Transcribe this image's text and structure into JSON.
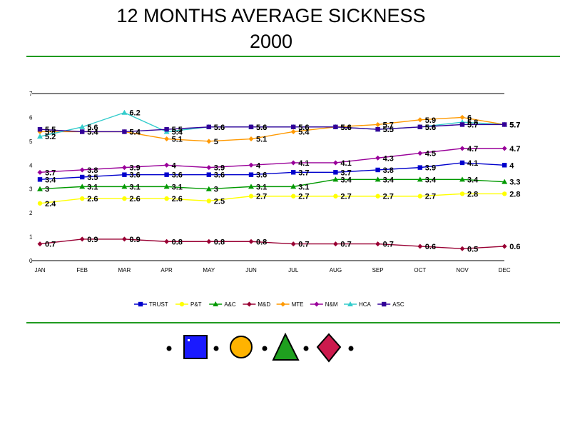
{
  "title_line1": "12  MONTHS AVERAGE SICKNESS",
  "title_line2": "2000",
  "chart_data": {
    "type": "line",
    "categories": [
      "JAN",
      "FEB",
      "MAR",
      "APR",
      "MAY",
      "JUN",
      "JUL",
      "AUG",
      "SEP",
      "OCT",
      "NOV",
      "DEC"
    ],
    "ylim": [
      0,
      7
    ],
    "yticks": [
      "0",
      "1",
      "2",
      "3",
      "4",
      "5",
      "6",
      "7"
    ],
    "xlabel": "",
    "ylabel": "",
    "legend_position": "bottom",
    "series": [
      {
        "name": "TRUST",
        "color": "#0000cc",
        "marker": "square",
        "values": [
          3.4,
          3.5,
          3.6,
          3.6,
          3.6,
          3.6,
          3.7,
          3.7,
          3.8,
          3.9,
          4.1,
          4.0
        ],
        "labels": [
          "3.4",
          "3.5",
          "3.6",
          "3.6",
          "3.6",
          "3.6",
          "3.7",
          "3.7",
          "3.8",
          "3.9",
          "4.1",
          "4"
        ]
      },
      {
        "name": "P&T",
        "color": "#ffff00",
        "marker": "circle",
        "values": [
          2.4,
          2.6,
          2.6,
          2.6,
          2.5,
          2.7,
          2.7,
          2.7,
          2.7,
          2.7,
          2.8,
          2.8
        ],
        "labels": [
          "2.4",
          "2.6",
          "2.6",
          "2.6",
          "2.5",
          "2.7",
          "2.7",
          "2.7",
          "2.7",
          "2.7",
          "2.8",
          "2.8"
        ]
      },
      {
        "name": "A&C",
        "color": "#009900",
        "marker": "triangle",
        "values": [
          3.0,
          3.1,
          3.1,
          3.1,
          3.0,
          3.1,
          3.1,
          3.4,
          3.4,
          3.4,
          3.4,
          3.3
        ],
        "labels": [
          "3",
          "3.1",
          "3.1",
          "3.1",
          "3",
          "3.1",
          "3.1",
          "3.4",
          "3.4",
          "3.4",
          "3.4",
          "3.3"
        ]
      },
      {
        "name": "M&D",
        "color": "#990033",
        "marker": "diamond",
        "values": [
          0.7,
          0.9,
          0.9,
          0.8,
          0.8,
          0.8,
          0.7,
          0.7,
          0.7,
          0.6,
          0.5,
          0.6
        ],
        "labels": [
          "0.7",
          "0.9",
          "0.9",
          "0.8",
          "0.8",
          "0.8",
          "0.7",
          "0.7",
          "0.7",
          "0.6",
          "0.5",
          "0.6"
        ]
      },
      {
        "name": "MTE",
        "color": "#ff9900",
        "marker": "diamond",
        "values": [
          5.4,
          5.4,
          5.4,
          5.1,
          5.0,
          5.1,
          5.4,
          5.6,
          5.7,
          5.9,
          6.0,
          5.7
        ],
        "labels": [
          "5.4",
          "5.4",
          "5.4",
          "5.1",
          "5",
          "5.1",
          "5.4",
          "5.6",
          "5.7",
          "5.9",
          "6",
          "5.7"
        ]
      },
      {
        "name": "N&M",
        "color": "#990099",
        "marker": "diamond",
        "values": [
          3.7,
          3.8,
          3.9,
          4.0,
          3.9,
          4.0,
          4.1,
          4.1,
          4.3,
          4.5,
          4.7,
          4.7
        ],
        "labels": [
          "3.7",
          "3.8",
          "3.9",
          "4",
          "3.9",
          "4",
          "4.1",
          "4.1",
          "4.3",
          "4.5",
          "4.7",
          "4.7"
        ]
      },
      {
        "name": "HCA",
        "color": "#33cccc",
        "marker": "triangle",
        "values": [
          5.2,
          5.6,
          6.2,
          5.4,
          5.6,
          5.6,
          5.6,
          5.6,
          5.5,
          5.6,
          5.8,
          5.7
        ],
        "labels": [
          "5.2",
          "5.6",
          "6.2",
          "5.4",
          "5.6",
          "5.6",
          "5.6",
          "5.6",
          "5.5",
          "5.6",
          "5.8",
          "5.7"
        ]
      },
      {
        "name": "ASC",
        "color": "#330099",
        "marker": "square",
        "values": [
          5.5,
          5.4,
          5.4,
          5.5,
          5.6,
          5.6,
          5.6,
          5.6,
          5.5,
          5.6,
          5.7,
          5.7
        ],
        "labels": [
          "5.5",
          "5.4",
          "5.4",
          "5.5",
          "5.6",
          "5.6",
          "5.6",
          "5.6",
          "5.5",
          "5.6",
          "5.7",
          "5.7"
        ]
      }
    ]
  },
  "bullet_shapes": [
    {
      "name": "square",
      "color": "#1a1aff"
    },
    {
      "name": "circle",
      "color": "#ffb300"
    },
    {
      "name": "triangle",
      "color": "#1fa01f"
    },
    {
      "name": "diamond",
      "color": "#cc1a4d"
    }
  ]
}
